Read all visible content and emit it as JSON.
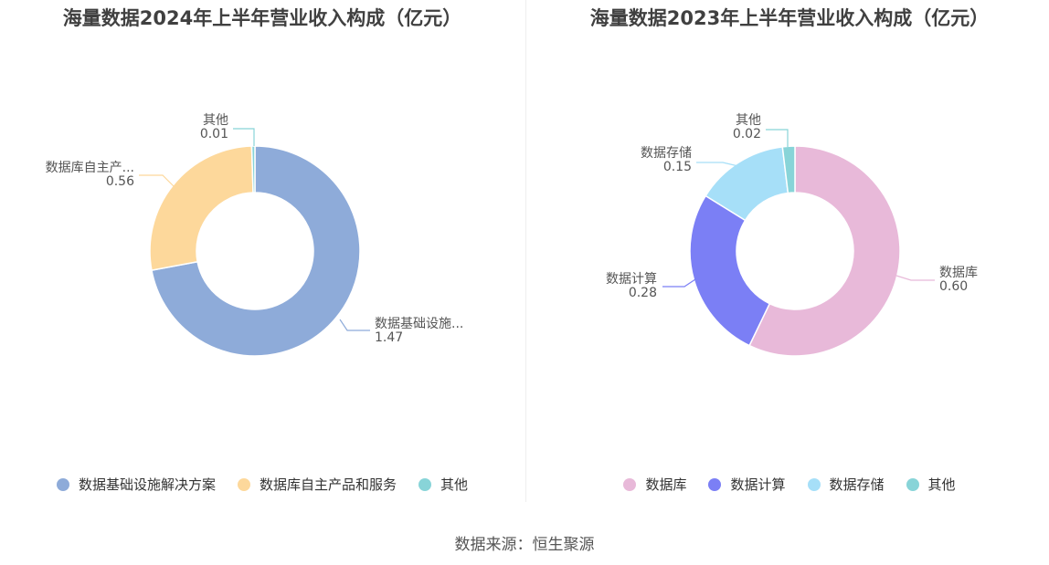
{
  "chart_data": [
    {
      "type": "pie",
      "title": "海量数据2024年上半年营业收入构成（亿元）",
      "categories": [
        "数据基础设施解决方案",
        "数据库自主产品和服务",
        "其他"
      ],
      "slice_labels": [
        "数据基础设施...",
        "数据库自主产...",
        "其他"
      ],
      "values": [
        1.47,
        0.56,
        0.01
      ],
      "value_labels": [
        "1.47",
        "0.56",
        "0.01"
      ],
      "colors": [
        "#8eabd9",
        "#fdd89b",
        "#88d4d8"
      ],
      "donut": true,
      "legend": "bottom"
    },
    {
      "type": "pie",
      "title": "海量数据2023年上半年营业收入构成（亿元）",
      "categories": [
        "数据库",
        "数据计算",
        "数据存储",
        "其他"
      ],
      "slice_labels": [
        "数据库",
        "数据计算",
        "数据存储",
        "其他"
      ],
      "values": [
        0.6,
        0.28,
        0.15,
        0.02
      ],
      "value_labels": [
        "0.60",
        "0.28",
        "0.15",
        "0.02"
      ],
      "colors": [
        "#e8b9d9",
        "#7b7ff5",
        "#a6dff8",
        "#88d4d8"
      ],
      "donut": true,
      "legend": "bottom"
    }
  ],
  "footer": {
    "source": "数据来源：恒生聚源"
  }
}
